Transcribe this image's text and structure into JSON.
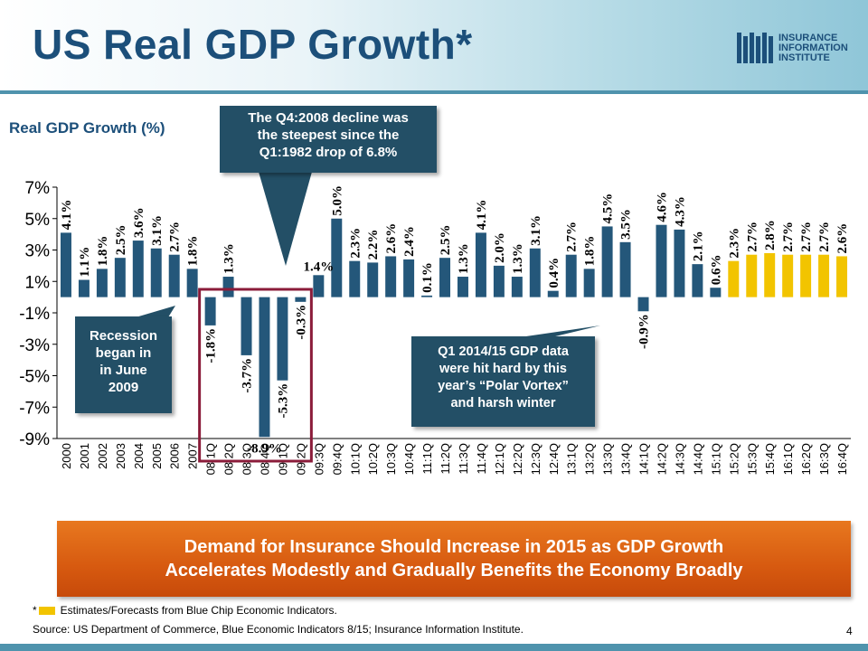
{
  "title": "US Real GDP Growth*",
  "logo": {
    "line1": "INSURANCE",
    "line2": "INFORMATION",
    "line3": "INSTITUTE"
  },
  "callouts": {
    "q4_2008": [
      "The Q4:2008 decline was",
      "the steepest since the",
      "Q1:1982 drop of 6.8%"
    ],
    "recession": [
      "Recession",
      "began in",
      "in June",
      "2009"
    ],
    "polar_vortex": [
      "Q1 2014/15 GDP data",
      "were hit hard by this",
      "year’s “Polar Vortex”",
      "and harsh winter"
    ]
  },
  "banner": [
    "Demand for Insurance Should Increase in 2015 as GDP Growth",
    "Accelerates Modestly and Gradually Benefits the Economy Broadly"
  ],
  "footnote": {
    "marker": "*",
    "text": "Estimates/Forecasts from Blue Chip Economic Indicators."
  },
  "source": "Source: US Department of Commerce, Blue Economic Indicators 8/15; Insurance Information Institute.",
  "page_number": "4",
  "colors": {
    "actual": "#24577a",
    "forecast": "#f2c400",
    "highlight_box": "#8b1c3a"
  },
  "chart_data": {
    "type": "bar",
    "ylabel": "Real GDP Growth (%)",
    "ylim": [
      -9,
      7
    ],
    "yticks": [
      7,
      5,
      3,
      1,
      -1,
      -3,
      -5,
      -7,
      -9
    ],
    "ytick_labels": [
      "7%",
      "5%",
      "3%",
      "1%",
      "-1%",
      "-3%",
      "-5%",
      "-7%",
      "-9%"
    ],
    "categories": [
      "2000",
      "2001",
      "2002",
      "2003",
      "2004",
      "2005",
      "2006",
      "2007",
      "08:1Q",
      "08:2Q",
      "08:3Q",
      "08:4Q",
      "09:1Q",
      "09:2Q",
      "09:3Q",
      "09:4Q",
      "10:1Q",
      "10:2Q",
      "10:3Q",
      "10:4Q",
      "11:1Q",
      "11:2Q",
      "11:3Q",
      "11:4Q",
      "12:1Q",
      "12:2Q",
      "12:3Q",
      "12:4Q",
      "13:1Q",
      "13:2Q",
      "13:3Q",
      "13:4Q",
      "14:1Q",
      "14:2Q",
      "14:3Q",
      "14:4Q",
      "15:1Q",
      "15:2Q",
      "15:3Q",
      "15:4Q",
      "16:1Q",
      "16:2Q",
      "16:3Q",
      "16:4Q"
    ],
    "values": [
      4.1,
      1.1,
      1.8,
      2.5,
      3.6,
      3.1,
      2.7,
      1.8,
      -1.8,
      1.3,
      -3.7,
      -8.9,
      -5.3,
      -0.3,
      1.4,
      5.0,
      2.3,
      2.2,
      2.6,
      2.4,
      0.1,
      2.5,
      1.3,
      4.1,
      2.0,
      1.3,
      3.1,
      0.4,
      2.7,
      1.8,
      4.5,
      3.5,
      -0.9,
      4.6,
      4.3,
      2.1,
      0.6,
      2.3,
      2.7,
      2.8,
      2.7,
      2.7,
      2.7,
      2.6
    ],
    "labels": [
      "4.1%",
      "1.1%",
      "1.8%",
      "2.5%",
      "3.6%",
      "3.1%",
      "2.7%",
      "1.8%",
      "-1.8%",
      "1.3%",
      "-3.7%",
      "-8.9%",
      "-5.3%",
      "-0.3%",
      "1.4%",
      "5.0%",
      "2.3%",
      "2.2%",
      "2.6%",
      "2.4%",
      "0.1%",
      "2.5%",
      "1.3%",
      "4.1%",
      "2.0%",
      "1.3%",
      "3.1%",
      "0.4%",
      "2.7%",
      "1.8%",
      "4.5%",
      "3.5%",
      "-0.9%",
      "4.6%",
      "4.3%",
      "2.1%",
      "0.6%",
      "2.3%",
      "2.7%",
      "2.8%",
      "2.7%",
      "2.7%",
      "2.7%",
      "2.6%"
    ],
    "forecast_from_index": 37,
    "legend": "none",
    "grid": false
  }
}
